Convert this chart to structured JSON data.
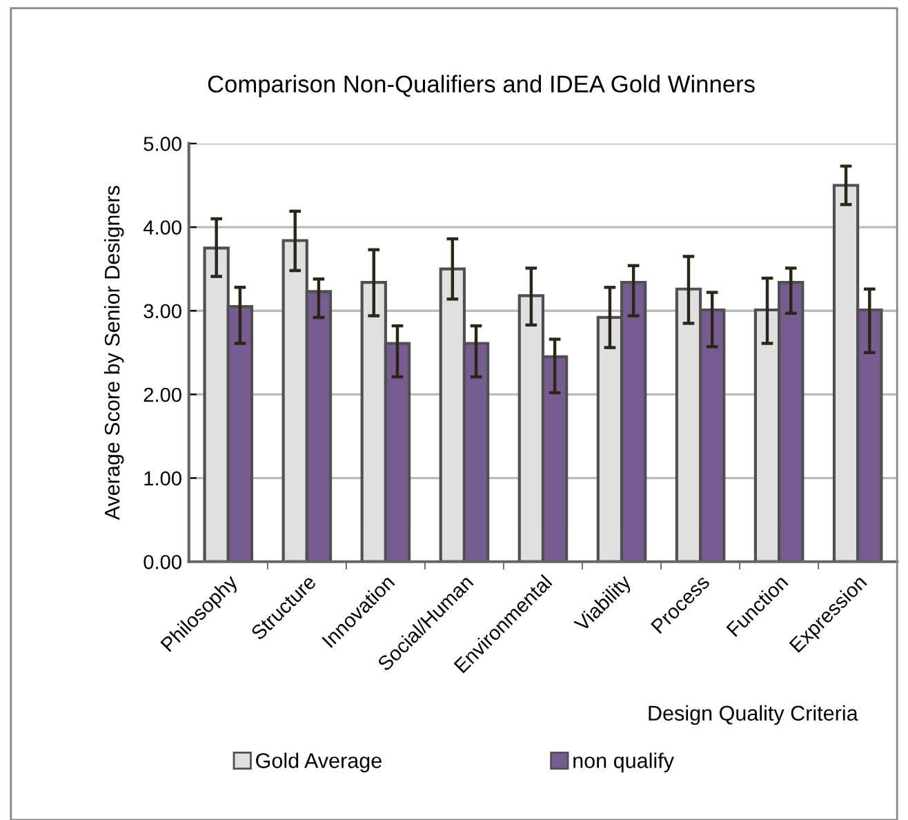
{
  "chart_data": {
    "type": "bar",
    "title": "Comparison Non-Qualifiers and IDEA Gold Winners",
    "xlabel": "Design Quality Criteria",
    "ylabel": "Average Score by Senior Designers",
    "categories": [
      "Philosophy",
      "Structure",
      "Innovation",
      "Social/Human",
      "Environmental",
      "Viability",
      "Process",
      "Function",
      "Expression"
    ],
    "series": [
      {
        "name": "Gold Average",
        "color": "#e0e0e0",
        "values": [
          3.75,
          3.84,
          3.34,
          3.5,
          3.18,
          2.92,
          3.26,
          3.01,
          4.5
        ],
        "errors": [
          [
            3.41,
            4.1
          ],
          [
            3.48,
            4.19
          ],
          [
            2.94,
            3.73
          ],
          [
            3.14,
            3.86
          ],
          [
            2.83,
            3.51
          ],
          [
            2.56,
            3.28
          ],
          [
            2.85,
            3.65
          ],
          [
            2.61,
            3.39
          ],
          [
            4.27,
            4.73
          ]
        ]
      },
      {
        "name": "non qualify",
        "color": "#765c91",
        "values": [
          3.05,
          3.23,
          2.61,
          2.61,
          2.45,
          3.34,
          3.01,
          3.34,
          3.01
        ],
        "errors": [
          [
            2.61,
            3.28
          ],
          [
            2.92,
            3.38
          ],
          [
            2.21,
            2.82
          ],
          [
            2.21,
            2.82
          ],
          [
            2.02,
            2.66
          ],
          [
            2.94,
            3.54
          ],
          [
            2.57,
            3.22
          ],
          [
            2.97,
            3.51
          ],
          [
            2.5,
            3.26
          ]
        ]
      }
    ],
    "ylim": [
      0,
      5
    ],
    "yticks": [
      {
        "value": 0,
        "label": "0.00"
      },
      {
        "value": 1,
        "label": "1.00"
      },
      {
        "value": 2,
        "label": "2.00"
      },
      {
        "value": 3,
        "label": "3.00"
      },
      {
        "value": 4,
        "label": "4.00"
      },
      {
        "value": 5,
        "label": "5.00"
      }
    ],
    "grid": "y",
    "legend": "bottom"
  }
}
